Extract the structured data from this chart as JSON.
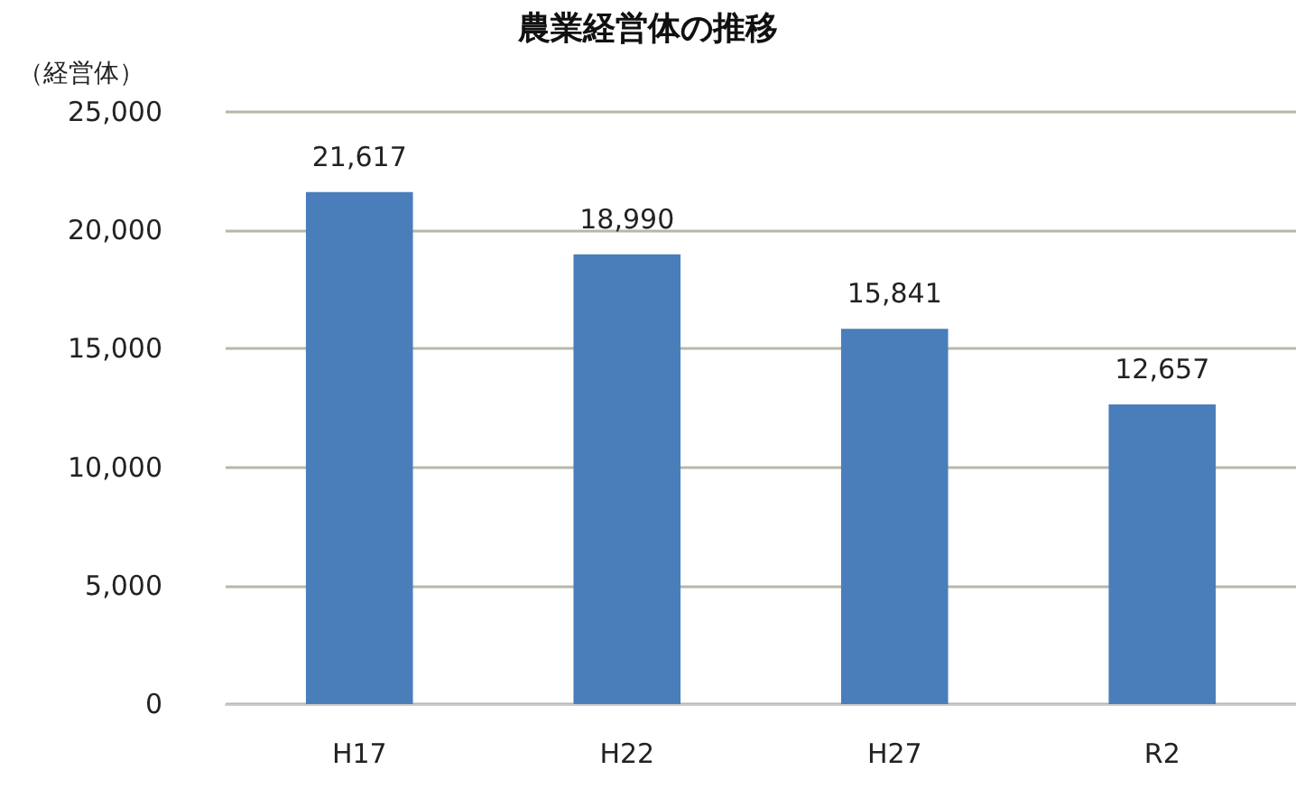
{
  "chart_data": {
    "type": "bar",
    "title": "農業経営体の推移",
    "ylabel": "（経営体）",
    "categories": [
      "H17",
      "H22",
      "H27",
      "R2"
    ],
    "series": [
      {
        "color": "#4a7ebb",
        "values": [
          21617,
          18990,
          15841,
          12657
        ],
        "value_labels": [
          "21,617",
          "18,990",
          "15,841",
          "12,657"
        ]
      }
    ],
    "ylim": [
      0,
      25000
    ],
    "yticks": [
      0,
      {
        "value": 5000,
        "label": "5,000"
      },
      {
        "value": 10000,
        "label": "10,000"
      },
      {
        "value": 15000,
        "label": "15,000"
      },
      {
        "value": 20000,
        "label": "20,000"
      },
      {
        "value": 25000,
        "label": "25,000"
      }
    ],
    "grid": "y"
  }
}
